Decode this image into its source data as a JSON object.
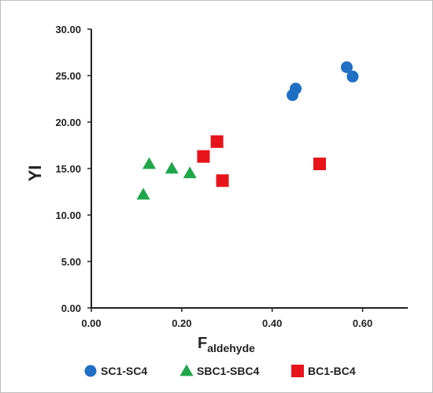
{
  "chart_data": {
    "type": "scatter",
    "title": "",
    "xlabel_main": "F",
    "xlabel_sub": "aldehyde",
    "ylabel": "YI",
    "xlim": [
      0,
      0.7
    ],
    "ylim": [
      0,
      30
    ],
    "x_ticks": [
      "0.00",
      "0.20",
      "0.40",
      "0.60"
    ],
    "y_ticks": [
      "0.00",
      "5.00",
      "10.00",
      "15.00",
      "20.00",
      "25.00",
      "30.00"
    ],
    "grid": false,
    "legend_position": "bottom",
    "series": [
      {
        "name": "SC1-SC4",
        "marker": "circle",
        "color": "#1f6fc5",
        "points": [
          {
            "x": 0.445,
            "y": 22.9
          },
          {
            "x": 0.452,
            "y": 23.6
          },
          {
            "x": 0.565,
            "y": 25.9
          },
          {
            "x": 0.578,
            "y": 24.9
          }
        ]
      },
      {
        "name": "SBC1-SBC4",
        "marker": "triangle",
        "color": "#1fa64a",
        "points": [
          {
            "x": 0.115,
            "y": 12.2
          },
          {
            "x": 0.128,
            "y": 15.5
          },
          {
            "x": 0.178,
            "y": 15.0
          },
          {
            "x": 0.218,
            "y": 14.5
          }
        ]
      },
      {
        "name": "BC1-BC4",
        "marker": "square",
        "color": "#e8141b",
        "points": [
          {
            "x": 0.248,
            "y": 16.3
          },
          {
            "x": 0.278,
            "y": 17.9
          },
          {
            "x": 0.29,
            "y": 13.7
          },
          {
            "x": 0.505,
            "y": 15.5
          }
        ]
      }
    ]
  }
}
